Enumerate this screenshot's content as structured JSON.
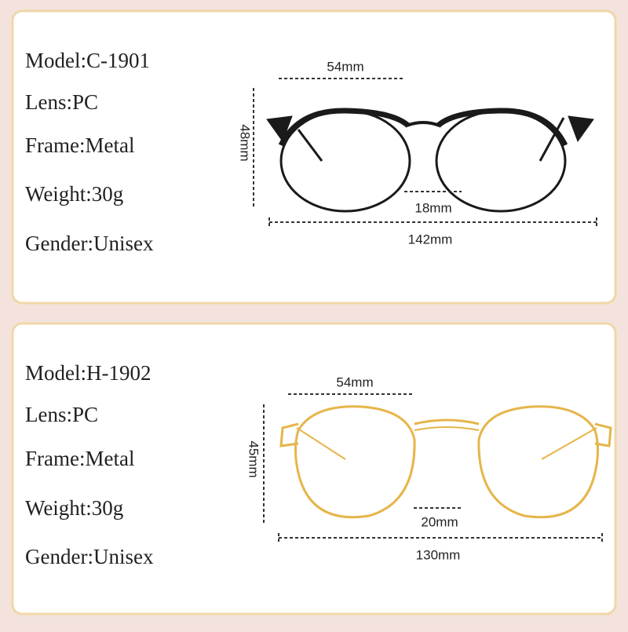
{
  "products": [
    {
      "specs": [
        "Model:C-1901",
        "Lens:PC",
        "Frame:Metal",
        "Weight:30g",
        "Gender:Unisex"
      ],
      "dimensions": {
        "lens_width": "54mm",
        "lens_height": "48mm",
        "bridge": "18mm",
        "total_width": "142mm"
      }
    },
    {
      "specs": [
        "Model:H-1902",
        "Lens:PC",
        "Frame:Metal",
        "Weight:30g",
        "Gender:Unisex"
      ],
      "dimensions": {
        "lens_width": "54mm",
        "lens_height": "45mm",
        "bridge": "20mm",
        "total_width": "130mm"
      }
    }
  ]
}
